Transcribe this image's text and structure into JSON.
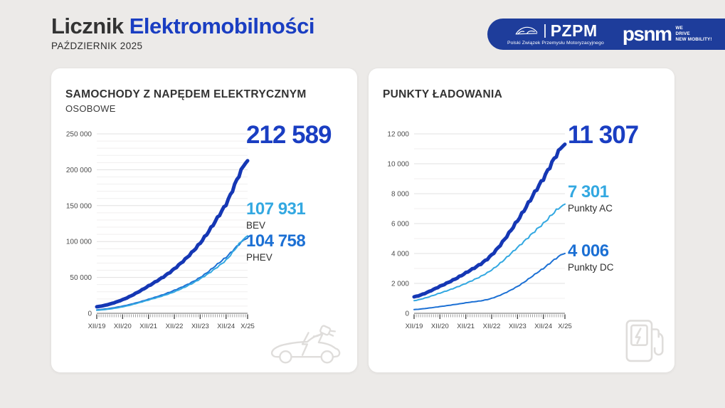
{
  "page": {
    "background": "#ECEAE8"
  },
  "header": {
    "title_part1": "Licznik",
    "title_part2": "Elektromobilności",
    "subtitle": "PAŹDZIERNIK 2025"
  },
  "logo_bar": {
    "pzpm_name": "PZPM",
    "pzpm_tagline": "Polski Związek Przemysłu Motoryzacyjnego",
    "psnm_name": "psnm",
    "psnm_tagline_line1": "WE",
    "psnm_tagline_line2": "DRIVE",
    "psnm_tagline_line3": "NEW MOBILITY!"
  },
  "colors": {
    "accent_blue": "#1A3EC2",
    "logo_bar_blue": "#1E3D9B",
    "line_dark_blue": "#1537B4",
    "line_light_blue": "#33A8E1",
    "line_mid_blue": "#1C70D4"
  },
  "chart_data": [
    {
      "type": "line",
      "title": "SAMOCHODY Z NAPĘDEM ELEKTRYCZNYM",
      "subtitle": "OSOBOWE",
      "x_tick_labels": [
        "XII/19",
        "XII/20",
        "XII/21",
        "XII/22",
        "XII/23",
        "XII/24",
        "X/25"
      ],
      "x_tick_months": [
        0,
        12,
        24,
        36,
        48,
        60,
        70
      ],
      "months_total": 70,
      "ylim": [
        0,
        250000
      ],
      "y_major_step": 50000,
      "y_minor_step": 10000,
      "y_tick_labels": [
        "0",
        "50 000",
        "100 000",
        "150 000",
        "200 000",
        "250 000"
      ],
      "grid": true,
      "legend_position": "right-annotations",
      "series": [
        {
          "name": "BEV+PHEV razem",
          "color": "dark",
          "width": 5,
          "anchors": [
            9000,
            19000,
            38000,
            62000,
            98000,
            152000,
            212589
          ]
        },
        {
          "name": "BEV",
          "color": "light",
          "width": 2,
          "anchors": [
            4200,
            9000,
            18500,
            30000,
            48000,
            74000,
            107931
          ]
        },
        {
          "name": "PHEV",
          "color": "mid",
          "width": 2,
          "anchors": [
            4800,
            10000,
            19500,
            32000,
            50000,
            78000,
            104758
          ]
        }
      ],
      "stats": {
        "total_value": "212 589",
        "items": [
          {
            "value": "107 931",
            "label": "BEV"
          },
          {
            "value": "104 758",
            "label": "PHEV"
          }
        ]
      }
    },
    {
      "type": "line",
      "title": "PUNKTY ŁADOWANIA",
      "subtitle": "",
      "x_tick_labels": [
        "XII/19",
        "XII/20",
        "XII/21",
        "XII/22",
        "XII/23",
        "XII/24",
        "X/25"
      ],
      "x_tick_months": [
        0,
        12,
        24,
        36,
        48,
        60,
        70
      ],
      "months_total": 70,
      "ylim": [
        0,
        12000
      ],
      "y_major_step": 2000,
      "y_minor_step": 1000,
      "y_tick_labels": [
        "0",
        "2 000",
        "4 000",
        "6 000",
        "8 000",
        "10 000",
        "12 000"
      ],
      "grid": true,
      "legend_position": "right-annotations",
      "series": [
        {
          "name": "Punkty ładowania razem",
          "color": "dark",
          "width": 5,
          "anchors": [
            1100,
            1800,
            2700,
            3900,
            6200,
            9000,
            11307
          ]
        },
        {
          "name": "Punkty AC",
          "color": "light",
          "width": 2,
          "anchors": [
            850,
            1350,
            2000,
            2900,
            4400,
            6000,
            7301
          ]
        },
        {
          "name": "Punkty DC",
          "color": "mid",
          "width": 2,
          "anchors": [
            250,
            450,
            700,
            1000,
            1800,
            3000,
            4006
          ]
        }
      ],
      "stats": {
        "total_value": "11 307",
        "items": [
          {
            "value": "7 301",
            "label": "Punkty AC"
          },
          {
            "value": "4 006",
            "label": "Punkty DC"
          }
        ]
      }
    }
  ]
}
